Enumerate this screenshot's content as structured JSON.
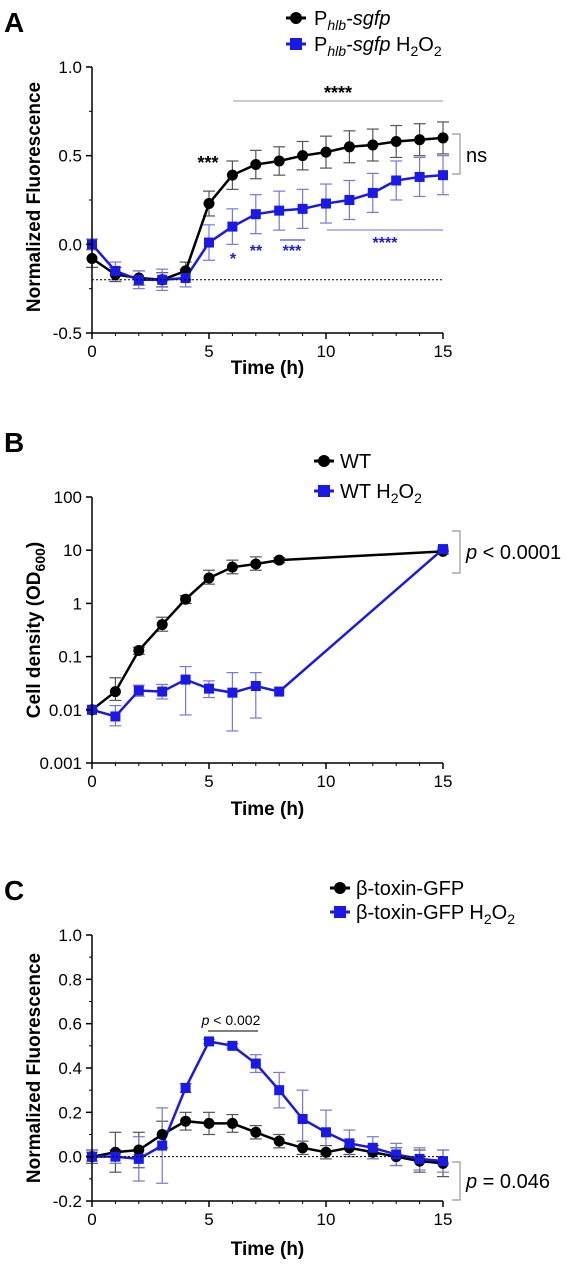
{
  "colors": {
    "series1": "#000000",
    "series2": "#1a1ae6",
    "errorbar1": "#555555",
    "errorbar2": "#7777dd",
    "axis": "#000000",
    "bracket": "#888888"
  },
  "chart_data": [
    {
      "panel": "A",
      "type": "line",
      "xlabel": "Time (h)",
      "ylabel": "Normalized Fluorescence",
      "xlim": [
        0,
        15
      ],
      "ylim": [
        -0.5,
        1.0
      ],
      "xticks": [
        "0",
        "5",
        "10",
        "15"
      ],
      "yticks": [
        "-0.5",
        "0.0",
        "0.5",
        "1.0"
      ],
      "baseline": -0.2,
      "legend_position": "top-right",
      "series": [
        {
          "name": "Phlb-sgfp",
          "name_main": "P",
          "name_sub": "hlb",
          "name_rest": "-sgfp",
          "marker": "circle",
          "x": [
            0,
            1,
            2,
            3,
            4,
            5,
            6,
            7,
            8,
            9,
            10,
            11,
            12,
            13,
            14,
            15
          ],
          "y": [
            -0.08,
            -0.17,
            -0.19,
            -0.2,
            -0.15,
            0.23,
            0.39,
            0.45,
            0.47,
            0.5,
            0.52,
            0.55,
            0.56,
            0.58,
            0.59,
            0.6
          ],
          "err": [
            0.05,
            0.04,
            0.04,
            0.04,
            0.05,
            0.07,
            0.08,
            0.08,
            0.08,
            0.08,
            0.09,
            0.09,
            0.09,
            0.09,
            0.09,
            0.09
          ]
        },
        {
          "name": "Phlb-sgfp H2O2",
          "name_main": "P",
          "name_sub": "hlb",
          "name_rest": "-sgfp H",
          "h2o2": true,
          "marker": "square",
          "x": [
            0,
            1,
            2,
            3,
            4,
            5,
            6,
            7,
            8,
            9,
            10,
            11,
            12,
            13,
            14,
            15
          ],
          "y": [
            0.0,
            -0.15,
            -0.2,
            -0.2,
            -0.19,
            0.01,
            0.1,
            0.17,
            0.19,
            0.2,
            0.23,
            0.25,
            0.29,
            0.36,
            0.38,
            0.39
          ],
          "err": [
            0.03,
            0.05,
            0.05,
            0.06,
            0.05,
            0.1,
            0.1,
            0.11,
            0.11,
            0.11,
            0.11,
            0.11,
            0.11,
            0.11,
            0.11,
            0.11
          ]
        }
      ],
      "annotations": {
        "sig_black": "***",
        "sig_blue_5": "*",
        "sig_blue_6": "**",
        "sig_blue_7": "***",
        "sig_blue_10_15": "****",
        "sig_top": "****",
        "end_label": "ns"
      }
    },
    {
      "panel": "B",
      "type": "line",
      "xlabel": "Time (h)",
      "ylabel": "Cell density (OD600)",
      "ylabel_main": "Cell density (OD",
      "ylabel_sub": "600",
      "ylabel_close": ")",
      "scale_y": "log",
      "xlim": [
        0,
        15
      ],
      "ylim": [
        0.001,
        100
      ],
      "xticks": [
        "0",
        "5",
        "10",
        "15"
      ],
      "yticks": [
        "0.001",
        "0.01",
        "0.1",
        "1",
        "10",
        "100"
      ],
      "legend_position": "top-right",
      "series": [
        {
          "name": "WT",
          "marker": "circle",
          "x": [
            0,
            1,
            2,
            3,
            4,
            5,
            6,
            7,
            8,
            15
          ],
          "y": [
            0.01,
            0.022,
            0.13,
            0.4,
            1.2,
            3.0,
            4.8,
            5.5,
            6.5,
            9.5
          ],
          "lo": [
            0.01,
            0.015,
            0.11,
            0.3,
            1.0,
            2.3,
            3.6,
            4.2,
            5.8,
            8.5
          ],
          "hi": [
            0.01,
            0.04,
            0.15,
            0.55,
            1.4,
            4.2,
            6.5,
            7.5,
            7.2,
            10.5
          ]
        },
        {
          "name": "WT H2O2",
          "name_main": "WT H",
          "h2o2": true,
          "marker": "square",
          "x": [
            0,
            1,
            2,
            3,
            4,
            5,
            6,
            7,
            8,
            15
          ],
          "y": [
            0.01,
            0.0075,
            0.023,
            0.022,
            0.037,
            0.025,
            0.021,
            0.028,
            0.022,
            10.5
          ],
          "lo": [
            0.01,
            0.005,
            0.018,
            0.016,
            0.008,
            0.017,
            0.004,
            0.007,
            0.022,
            9.5
          ],
          "hi": [
            0.01,
            0.012,
            0.029,
            0.03,
            0.065,
            0.035,
            0.05,
            0.05,
            0.022,
            11.5
          ]
        }
      ],
      "annotations": {
        "end_label_p": "p",
        "end_label_rest": " < 0.0001"
      }
    },
    {
      "panel": "C",
      "type": "line",
      "xlabel": "Time (h)",
      "ylabel": "Normalized Fluorescence",
      "xlim": [
        0,
        15
      ],
      "ylim": [
        -0.2,
        1.0
      ],
      "xticks": [
        "0",
        "5",
        "10",
        "15"
      ],
      "yticks": [
        "-0.2",
        "0.0",
        "0.2",
        "0.4",
        "0.6",
        "0.8",
        "1.0"
      ],
      "baseline": 0.0,
      "legend_position": "top-right",
      "series": [
        {
          "name": "β-toxin-GFP",
          "marker": "circle",
          "x": [
            0,
            1,
            2,
            3,
            4,
            5,
            6,
            7,
            8,
            9,
            10,
            11,
            12,
            13,
            14,
            15
          ],
          "y": [
            0.0,
            0.02,
            0.03,
            0.1,
            0.16,
            0.15,
            0.15,
            0.11,
            0.07,
            0.04,
            0.02,
            0.04,
            0.02,
            0.0,
            -0.02,
            -0.03
          ],
          "err": [
            0.03,
            0.09,
            0.08,
            0.06,
            0.04,
            0.05,
            0.04,
            0.03,
            0.03,
            0.03,
            0.03,
            0.03,
            0.03,
            0.04,
            0.05,
            0.06
          ]
        },
        {
          "name": "β-toxin-GFP H2O2",
          "name_main": "β-toxin-GFP H",
          "h2o2": true,
          "marker": "square",
          "x": [
            0,
            1,
            2,
            3,
            4,
            5,
            6,
            7,
            8,
            9,
            10,
            11,
            12,
            13,
            14,
            15
          ],
          "y": [
            0.0,
            0.0,
            -0.01,
            0.05,
            0.31,
            0.52,
            0.5,
            0.42,
            0.3,
            0.17,
            0.11,
            0.06,
            0.04,
            0.01,
            -0.01,
            -0.02
          ],
          "err": [
            0.02,
            0.03,
            0.1,
            0.17,
            0.02,
            0.01,
            0.01,
            0.04,
            0.08,
            0.13,
            0.1,
            0.06,
            0.05,
            0.05,
            0.05,
            0.05
          ]
        }
      ],
      "annotations": {
        "bar_label_p": "p",
        "bar_label_rest": " < 0.002",
        "end_label_p": "p",
        "end_label_rest": " = 0.046"
      }
    }
  ],
  "panel_letters": [
    "A",
    "B",
    "C"
  ]
}
